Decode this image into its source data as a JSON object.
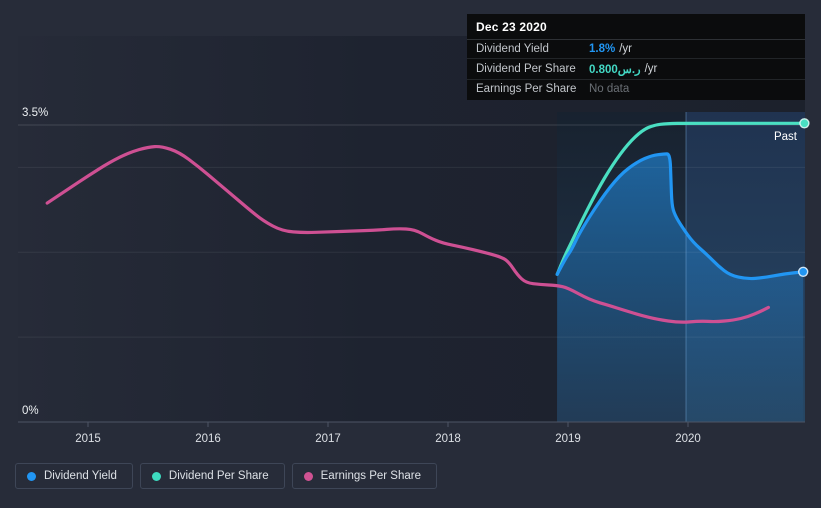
{
  "tooltip": {
    "date": "Dec 23 2020",
    "rows": [
      {
        "label": "Dividend Yield",
        "value": "1.8%",
        "suffix": " /yr",
        "value_color": "#2196f3"
      },
      {
        "label": "Dividend Per Share",
        "value": "0.800ر.س",
        "suffix": " /yr",
        "value_color": "#43d9c5"
      },
      {
        "label": "Earnings Per Share",
        "value": "No data",
        "suffix": "",
        "value_color": "#6b7076"
      }
    ]
  },
  "chart_data": {
    "type": "line",
    "y_axis": {
      "unit": "%",
      "min": 0,
      "max": 3.5,
      "top_label": "3.5%",
      "bottom_label": "0%",
      "gridline_values": [
        3.5,
        3,
        2,
        1
      ]
    },
    "x_axis": {
      "tick_years": [
        2015,
        2016,
        2017,
        2018,
        2019,
        2020
      ],
      "range": [
        2014.42,
        2020.98
      ]
    },
    "past_region": {
      "start_year": 2018.908,
      "divider_year": 2019.983,
      "end_year": 2020.975,
      "label": "Past"
    },
    "series": [
      {
        "name": "Dividend Yield",
        "color": "#2196f3",
        "area": true,
        "end_marker": true,
        "points": [
          [
            2018.91,
            1.74
          ],
          [
            2018.98,
            1.93
          ],
          [
            2019.03,
            2.03
          ],
          [
            2019.1,
            2.24
          ],
          [
            2019.27,
            2.62
          ],
          [
            2019.43,
            2.91
          ],
          [
            2019.58,
            3.07
          ],
          [
            2019.7,
            3.14
          ],
          [
            2019.8,
            3.16
          ],
          [
            2019.85,
            3.16
          ],
          [
            2019.858,
            2.85
          ],
          [
            2019.865,
            2.56
          ],
          [
            2019.89,
            2.44
          ],
          [
            2019.95,
            2.3
          ],
          [
            2020.04,
            2.12
          ],
          [
            2020.16,
            1.97
          ],
          [
            2020.25,
            1.84
          ],
          [
            2020.35,
            1.73
          ],
          [
            2020.49,
            1.685
          ],
          [
            2020.63,
            1.7
          ],
          [
            2020.8,
            1.745
          ],
          [
            2020.96,
            1.77
          ]
        ],
        "latest_value": "1.8% /yr"
      },
      {
        "name": "Dividend Per Share",
        "color": "#4adfc2",
        "area": false,
        "end_marker": true,
        "note": "plotted on hidden per-share scale; latest value 0.800 SAR/yr",
        "points": [
          [
            2018.91,
            1.74
          ],
          [
            2018.97,
            1.95
          ],
          [
            2019.03,
            2.12
          ],
          [
            2019.1,
            2.33
          ],
          [
            2019.24,
            2.72
          ],
          [
            2019.37,
            3.03
          ],
          [
            2019.5,
            3.28
          ],
          [
            2019.62,
            3.44
          ],
          [
            2019.72,
            3.5
          ],
          [
            2019.82,
            3.517
          ],
          [
            2020.0,
            3.52
          ],
          [
            2020.5,
            3.52
          ],
          [
            2020.97,
            3.52
          ]
        ],
        "latest_value": "0.800 SAR /yr"
      },
      {
        "name": "Earnings Per Share",
        "color": "#ce5093",
        "area": false,
        "end_marker": false,
        "points": [
          [
            2014.66,
            2.58
          ],
          [
            2014.83,
            2.74
          ],
          [
            2015.0,
            2.9
          ],
          [
            2015.18,
            3.06
          ],
          [
            2015.35,
            3.18
          ],
          [
            2015.5,
            3.24
          ],
          [
            2015.61,
            3.25
          ],
          [
            2015.76,
            3.18
          ],
          [
            2015.92,
            3.01
          ],
          [
            2016.08,
            2.82
          ],
          [
            2016.18,
            2.7
          ],
          [
            2016.33,
            2.52
          ],
          [
            2016.46,
            2.37
          ],
          [
            2016.62,
            2.25
          ],
          [
            2016.8,
            2.23
          ],
          [
            2017.0,
            2.24
          ],
          [
            2017.2,
            2.25
          ],
          [
            2017.4,
            2.26
          ],
          [
            2017.58,
            2.28
          ],
          [
            2017.72,
            2.27
          ],
          [
            2017.85,
            2.17
          ],
          [
            2017.95,
            2.11
          ],
          [
            2018.12,
            2.06
          ],
          [
            2018.3,
            2.0
          ],
          [
            2018.43,
            1.95
          ],
          [
            2018.5,
            1.9
          ],
          [
            2018.58,
            1.73
          ],
          [
            2018.65,
            1.64
          ],
          [
            2018.77,
            1.62
          ],
          [
            2018.91,
            1.61
          ],
          [
            2019.0,
            1.58
          ],
          [
            2019.18,
            1.44
          ],
          [
            2019.35,
            1.37
          ],
          [
            2019.46,
            1.32
          ],
          [
            2019.6,
            1.26
          ],
          [
            2019.74,
            1.21
          ],
          [
            2019.93,
            1.17
          ],
          [
            2020.1,
            1.19
          ],
          [
            2020.23,
            1.18
          ],
          [
            2020.38,
            1.2
          ],
          [
            2020.5,
            1.24
          ],
          [
            2020.6,
            1.3
          ],
          [
            2020.67,
            1.35
          ]
        ],
        "latest_value": "No data"
      }
    ]
  },
  "legend": {
    "items": [
      {
        "label": "Dividend Yield",
        "color": "#2196f3"
      },
      {
        "label": "Dividend Per Share",
        "color": "#3ddbc0"
      },
      {
        "label": "Earnings Per Share",
        "color": "#cf5292"
      }
    ]
  },
  "colors": {
    "background": "#272c39",
    "accent_blue": "#2196f3",
    "accent_teal": "#4adfc2",
    "accent_pink": "#ce5093"
  }
}
